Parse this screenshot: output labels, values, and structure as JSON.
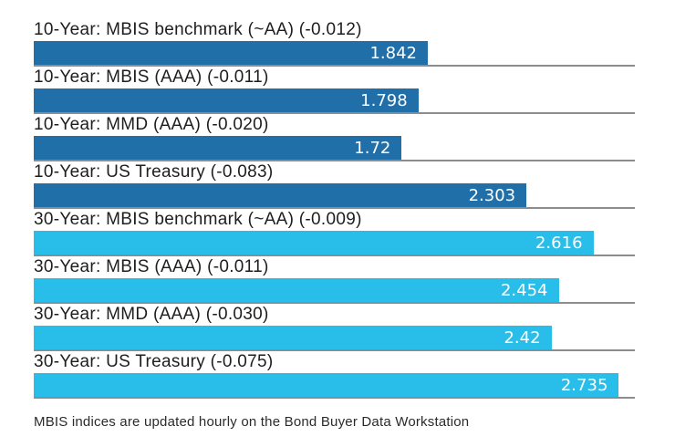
{
  "chart_data": {
    "type": "bar",
    "orientation": "horizontal",
    "title": "",
    "xlabel": "",
    "ylabel": "",
    "xlim": [
      0,
      2.81
    ],
    "grid": false,
    "legend": "none",
    "value_label_position": "inside-end",
    "groups": [
      {
        "name": "10-Year",
        "color": "#216fa8"
      },
      {
        "name": "30-Year",
        "color": "#29bde9"
      }
    ],
    "bars": [
      {
        "label": "10-Year: MBIS benchmark (~AA) (-0.012)",
        "value": 1.842,
        "display": "1.842",
        "group": "10-Year"
      },
      {
        "label": "10-Year: MBIS (AAA) (-0.011)",
        "value": 1.798,
        "display": "1.798",
        "group": "10-Year"
      },
      {
        "label": "10-Year: MMD (AAA) (-0.020)",
        "value": 1.72,
        "display": "1.72",
        "group": "10-Year"
      },
      {
        "label": "10-Year: US Treasury (-0.083)",
        "value": 2.303,
        "display": "2.303",
        "group": "10-Year"
      },
      {
        "label": "30-Year: MBIS benchmark (~AA) (-0.009)",
        "value": 2.616,
        "display": "2.616",
        "group": "30-Year"
      },
      {
        "label": "30-Year: MBIS (AAA) (-0.011)",
        "value": 2.454,
        "display": "2.454",
        "group": "30-Year"
      },
      {
        "label": "30-Year: MMD (AAA) (-0.030)",
        "value": 2.42,
        "display": "2.42",
        "group": "30-Year"
      },
      {
        "label": "30-Year: US Treasury (-0.075)",
        "value": 2.735,
        "display": "2.735",
        "group": "30-Year"
      }
    ],
    "footnote": "MBIS indices are updated hourly on the Bond Buyer Data Workstation",
    "colors": {
      "ten_year_bar": "#216fa8",
      "thirty_year_bar": "#29bde9",
      "baseline": "#8c8c8c",
      "value_text": "#ffffff",
      "label_text": "#1e1e1e"
    }
  }
}
